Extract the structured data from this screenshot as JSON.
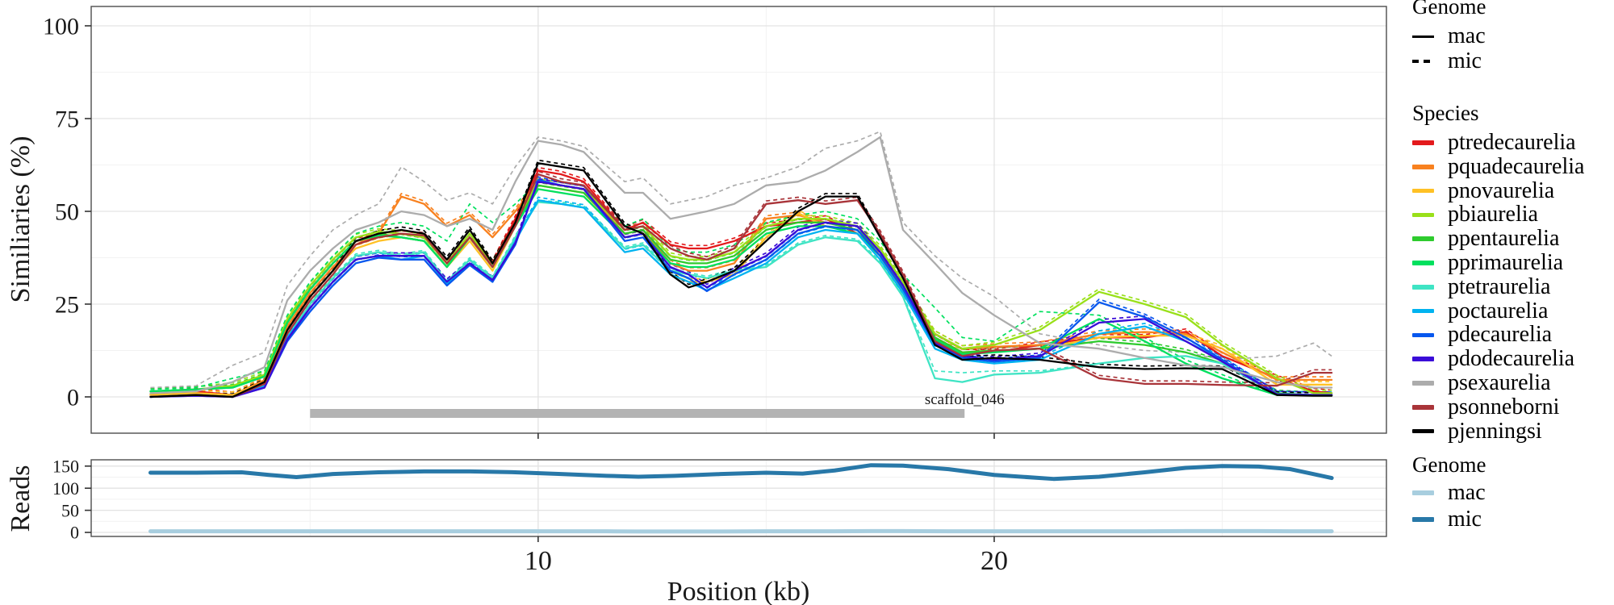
{
  "xlabel": "Position (kb)",
  "scaffold": {
    "label": "scaffold_046",
    "bar_from_kb": 5.0,
    "bar_to_kb": 19.35,
    "color": "#B3B3B3",
    "label_color": "#B9B9B9"
  },
  "legend": {
    "genome_top": {
      "title": "Genome",
      "items": [
        {
          "label": "mac",
          "style": "solid"
        },
        {
          "label": "mic",
          "style": "dashed"
        }
      ]
    },
    "species": {
      "title": "Species",
      "items": [
        {
          "label": "ptredecaurelia",
          "color": "#E31A1C"
        },
        {
          "label": "pquadecaurelia",
          "color": "#F8811F"
        },
        {
          "label": "pnovaurelia",
          "color": "#FFC125"
        },
        {
          "label": "pbiaurelia",
          "color": "#99E019"
        },
        {
          "label": "ppentaurelia",
          "color": "#2ECB2E"
        },
        {
          "label": "pprimaurelia",
          "color": "#00E05E"
        },
        {
          "label": "ptetraurelia",
          "color": "#3FE4C4"
        },
        {
          "label": "poctaurelia",
          "color": "#00B3F0"
        },
        {
          "label": "pdecaurelia",
          "color": "#0757EE"
        },
        {
          "label": "pdodecaurelia",
          "color": "#3A0BD8"
        },
        {
          "label": "psexaurelia",
          "color": "#ACACAC"
        },
        {
          "label": "psonneborni",
          "color": "#A93439"
        },
        {
          "label": "pjenningsi",
          "color": "#000000"
        }
      ]
    },
    "genome_reads": {
      "title": "Genome",
      "items": [
        {
          "label": "mac",
          "color": "#A8CEDF"
        },
        {
          "label": "mic",
          "color": "#2878A8"
        }
      ]
    }
  },
  "chart_data": [
    {
      "id": "similarity",
      "type": "line",
      "ylabel": "Similiaries (%)",
      "yticks": [
        0,
        25,
        50,
        75,
        100
      ],
      "yminor": [
        12.5,
        37.5,
        62.5,
        87.5
      ],
      "ylim": [
        -9.8,
        105
      ],
      "xlim": [
        0.2,
        28.6
      ],
      "xticks": [
        10,
        20
      ],
      "xminor": [
        5,
        15,
        25
      ],
      "legend_position": "right",
      "grid": true,
      "mic_default_offset": 0.8,
      "x": [
        1.5,
        2.5,
        3.3,
        4.0,
        4.5,
        5.0,
        5.5,
        6.0,
        6.5,
        7.0,
        7.5,
        8.0,
        8.5,
        9.0,
        9.5,
        10.0,
        10.5,
        11.0,
        11.9,
        12.3,
        12.9,
        13.3,
        13.7,
        14.3,
        15.0,
        15.7,
        16.3,
        17.0,
        17.5,
        18.0,
        18.7,
        19.3,
        20.0,
        21.0,
        22.3,
        23.3,
        24.2,
        25.0,
        26.2,
        27.0,
        27.4
      ],
      "series": [
        {
          "name": "ptredecaurelia",
          "color": "#E31A1C",
          "mac": [
            0.5,
            1.5,
            0.5,
            4,
            20,
            29,
            36,
            42,
            43,
            44,
            43,
            36,
            43,
            36,
            48,
            61,
            60,
            58,
            45,
            47,
            41,
            40,
            40,
            42,
            46,
            47,
            48,
            44,
            38,
            30,
            16,
            12,
            12,
            14,
            16,
            16,
            17.5,
            11,
            5,
            1.5,
            1
          ]
        },
        {
          "name": "pquadecaurelia",
          "color": "#F8811F",
          "mac": [
            0.5,
            1,
            0.5,
            4.5,
            19,
            28,
            35,
            41,
            44,
            54,
            52,
            46,
            49,
            43,
            50,
            58,
            57,
            56,
            44,
            45,
            36,
            34,
            34,
            36,
            48,
            49,
            47,
            46,
            39,
            30,
            17,
            13,
            13.5,
            14,
            17,
            17.5,
            17,
            12,
            4.6,
            4.6,
            4.6
          ]
        },
        {
          "name": "pnovaurelia",
          "color": "#FFC125",
          "mac": [
            0.5,
            1,
            0.5,
            4,
            18,
            27,
            34,
            40,
            42,
            43,
            42,
            35,
            42,
            34,
            46,
            57,
            56,
            55,
            43,
            44,
            33,
            31,
            31,
            33,
            43,
            49.5,
            46,
            45,
            38,
            28,
            15,
            12,
            12.5,
            13,
            16,
            16.5,
            16.5,
            13,
            3.3,
            3.3,
            3.3
          ]
        },
        {
          "name": "pbiaurelia",
          "color": "#99E019",
          "mac": [
            1.5,
            2,
            3,
            6,
            21,
            30,
            37,
            43,
            44.5,
            44,
            43,
            36,
            44,
            36,
            47,
            58,
            57,
            56,
            45,
            46,
            38,
            37,
            37,
            39,
            46,
            48,
            48,
            46,
            40,
            31,
            17,
            13,
            14,
            18,
            28.3,
            25,
            21.5,
            14,
            5,
            1,
            1
          ]
        },
        {
          "name": "ppentaurelia",
          "color": "#2ECB2E",
          "mac": [
            1.5,
            2,
            2.5,
            5.5,
            20,
            29,
            36,
            42,
            44,
            43,
            42,
            35,
            43,
            35,
            46,
            57,
            56,
            55,
            44,
            45,
            37,
            36,
            36,
            38,
            45,
            47,
            47,
            45,
            39,
            30,
            16,
            12,
            12.5,
            13,
            15,
            14,
            12,
            9,
            1,
            0.5,
            0.5
          ]
        },
        {
          "name": "pprimaurelia",
          "color": "#00E05E",
          "mac": [
            1.5,
            2,
            2.5,
            5.5,
            20,
            29,
            36,
            42,
            43.5,
            43,
            42,
            35,
            43,
            35,
            46,
            56,
            55,
            54,
            43,
            44,
            36,
            35,
            35,
            37,
            44,
            46,
            46,
            44,
            38,
            29,
            15.5,
            11.5,
            12,
            13,
            21,
            15,
            9,
            5,
            0.5,
            0.5,
            0.5
          ],
          "mic": [
            2,
            2.5,
            5,
            7,
            22,
            31,
            38,
            44,
            46,
            47,
            46,
            42,
            52,
            47,
            52,
            58,
            57,
            56,
            46,
            48,
            40,
            39,
            39,
            41,
            47,
            49,
            50,
            48,
            42,
            33,
            24,
            16,
            15,
            23,
            22,
            16,
            10,
            6,
            0.5,
            0.5,
            0.5
          ]
        },
        {
          "name": "ptetraurelia",
          "color": "#3FE4C4",
          "mac": [
            0,
            0.5,
            0,
            3,
            16,
            25,
            32,
            38,
            39,
            38,
            39,
            31,
            37,
            32,
            43,
            52.5,
            52,
            51,
            40,
            41,
            34,
            33,
            32,
            34,
            35,
            41,
            43,
            42,
            36,
            27,
            5,
            4,
            6,
            6.5,
            9,
            10.5,
            11,
            9,
            0.7,
            0.5,
            0.5
          ],
          "mic": [
            0,
            0.5,
            0,
            3,
            16.5,
            25.5,
            32.5,
            38.5,
            39.5,
            38.5,
            39.5,
            31.5,
            37.5,
            32.5,
            43.5,
            53,
            52.5,
            51.5,
            40.5,
            41.5,
            34.5,
            33.5,
            32.5,
            34.5,
            35.5,
            41.5,
            43.5,
            42.5,
            36.5,
            27.5,
            7,
            6.5,
            7,
            7,
            9,
            10.5,
            11,
            9,
            0.7,
            0.5,
            0.5
          ]
        },
        {
          "name": "poctaurelia",
          "color": "#00B3F0",
          "mac": [
            0,
            0.5,
            0,
            3,
            16,
            24,
            31,
            37,
            38,
            37,
            38,
            30.5,
            36,
            31,
            42,
            53,
            52,
            51,
            39,
            40,
            33,
            31,
            28.7,
            32,
            36,
            43,
            45,
            44,
            37,
            28,
            13,
            10,
            9,
            10,
            17,
            19,
            15,
            10,
            0.7,
            0.5,
            0.5
          ]
        },
        {
          "name": "pdecaurelia",
          "color": "#0757EE",
          "mac": [
            0,
            0.3,
            0,
            2.5,
            15,
            23,
            30,
            36,
            37.5,
            37,
            37,
            30,
            35.5,
            31,
            41,
            58.5,
            57,
            56,
            42,
            43,
            34,
            32,
            28.5,
            33,
            37,
            44,
            46,
            45,
            38,
            29,
            14,
            10.5,
            9.5,
            10.5,
            25.5,
            21.5,
            16,
            10,
            0.7,
            0.5,
            0.5
          ]
        },
        {
          "name": "pdodecaurelia",
          "color": "#3A0BD8",
          "mac": [
            0,
            0.3,
            0,
            2.5,
            15.5,
            24,
            31,
            37,
            38,
            38,
            38,
            31,
            36,
            31.5,
            41.5,
            58,
            57,
            56,
            43,
            44,
            35,
            33,
            29.5,
            34,
            38,
            45,
            47,
            46,
            39,
            30,
            14.5,
            11,
            10,
            11,
            20,
            21,
            15,
            9.5,
            0.7,
            0.5,
            0.5
          ]
        },
        {
          "name": "psexaurelia",
          "color": "#ACACAC",
          "mac": [
            1,
            1.5,
            4,
            8,
            26,
            34,
            40,
            45,
            47,
            50,
            49,
            46,
            48,
            45,
            58,
            69,
            68,
            66,
            55,
            55,
            48,
            49,
            50,
            52,
            57,
            58,
            61,
            66,
            70,
            45,
            36,
            28,
            22,
            14.5,
            13,
            10.5,
            8.5,
            8,
            4,
            2.5,
            2.5
          ],
          "mic": [
            2.5,
            3,
            8.5,
            12,
            30,
            38,
            45,
            49,
            52,
            62,
            58,
            53,
            55,
            52,
            62,
            70,
            69,
            67.5,
            58,
            59,
            52,
            53,
            54,
            57,
            59,
            62,
            67,
            69,
            71.5,
            47,
            38,
            32,
            27,
            17,
            14,
            12.5,
            12,
            10,
            11,
            14.5,
            11
          ]
        },
        {
          "name": "psonneborni",
          "color": "#A93439",
          "mac": [
            0,
            0.5,
            0,
            3.5,
            17,
            26,
            33,
            41,
            43,
            44,
            43.5,
            36,
            43,
            35,
            46,
            60,
            58,
            57,
            45,
            46,
            40,
            38,
            37,
            40,
            52,
            53,
            52,
            53,
            44,
            33,
            15,
            11,
            12.5,
            13,
            5,
            3.5,
            3.5,
            3.2,
            3,
            6.5,
            6.5
          ]
        },
        {
          "name": "pjenningsi",
          "color": "#000000",
          "mac": [
            0,
            0.5,
            0,
            4,
            18,
            27,
            34,
            42,
            44,
            45,
            44,
            37,
            45,
            36,
            47,
            63,
            62,
            61,
            46,
            44,
            33,
            29.5,
            31,
            34,
            42,
            50,
            54,
            54,
            43,
            32,
            14,
            10,
            10.5,
            10,
            8,
            7.5,
            7.7,
            7.5,
            0.5,
            0.3,
            0.3
          ]
        }
      ]
    },
    {
      "id": "reads",
      "type": "line",
      "ylabel": "Reads",
      "yticks": [
        0,
        50,
        100,
        150
      ],
      "yminor": [
        25,
        75,
        125
      ],
      "ylim": [
        -7,
        165
      ],
      "x": [
        1.5,
        2.5,
        3.5,
        4.1,
        4.7,
        5.5,
        6.5,
        7.5,
        8.5,
        9.5,
        10.5,
        11.5,
        12.2,
        13,
        14,
        15,
        15.8,
        16.5,
        17.3,
        18,
        19,
        20,
        21.3,
        22.3,
        23.3,
        24.2,
        25,
        25.8,
        26.5,
        27,
        27.4
      ],
      "series": [
        {
          "name": "mac",
          "color": "#A8CEDF",
          "values": [
            2.5,
            2.5,
            2.5,
            2.5,
            2.5,
            2.5,
            2.5,
            2.5,
            2.5,
            2.5,
            2.5,
            2.5,
            2,
            2,
            2,
            2.5,
            2.5,
            2.5,
            3,
            3,
            2.5,
            2.5,
            2.5,
            2.5,
            2.5,
            3,
            3,
            3,
            2.5,
            2.5,
            2.5
          ]
        },
        {
          "name": "mic",
          "color": "#2878A8",
          "values": [
            135,
            135,
            136,
            130,
            125,
            132,
            136,
            138,
            138,
            136,
            132,
            128,
            126,
            128,
            132,
            135,
            133,
            140,
            152,
            151,
            143,
            130,
            121,
            126,
            136,
            146,
            150,
            149,
            143,
            132,
            123
          ]
        }
      ]
    }
  ]
}
